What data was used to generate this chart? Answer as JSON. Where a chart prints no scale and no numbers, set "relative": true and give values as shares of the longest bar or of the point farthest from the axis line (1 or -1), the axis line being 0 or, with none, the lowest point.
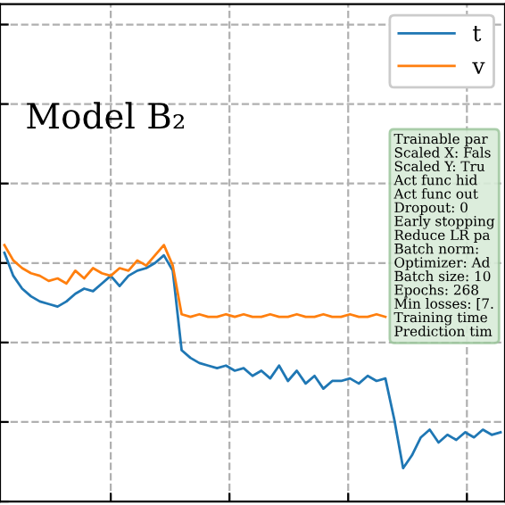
{
  "chart_data": {
    "type": "line",
    "relative": true,
    "grid": true,
    "legend": "top right",
    "tick_labels": false,
    "marker": "none",
    "line_style": "solid",
    "categories": [
      null,
      null,
      null,
      null,
      null,
      null,
      null,
      null,
      null,
      null,
      null,
      null,
      null,
      null,
      null,
      null,
      null,
      null,
      null,
      null,
      null,
      null,
      null,
      null,
      null,
      null,
      null,
      null,
      null,
      null,
      null,
      null,
      null,
      null,
      null,
      null,
      null,
      null,
      null,
      null,
      null,
      null,
      null,
      null,
      null,
      null,
      null,
      null,
      null,
      null,
      null,
      null,
      null,
      null,
      null,
      null,
      null
    ],
    "series": [
      {
        "name": "t",
        "color": "#1f77b4",
        "values": [
          0.97,
          0.88,
          0.83,
          0.8,
          0.78,
          0.77,
          0.76,
          0.78,
          0.81,
          0.83,
          0.82,
          0.85,
          0.88,
          0.84,
          0.88,
          0.9,
          0.91,
          0.93,
          0.96,
          0.9,
          0.59,
          0.56,
          0.54,
          0.53,
          0.52,
          0.53,
          0.51,
          0.52,
          0.49,
          0.51,
          0.48,
          0.53,
          0.47,
          0.51,
          0.46,
          0.49,
          0.44,
          0.47,
          0.47,
          0.48,
          0.46,
          0.49,
          0.47,
          0.48,
          0.32,
          0.13,
          0.18,
          0.25,
          0.28,
          0.23,
          0.26,
          0.24,
          0.27,
          0.25,
          0.28,
          0.26,
          0.27
        ]
      },
      {
        "name": "v",
        "color": "#ff7f0e",
        "values": [
          1.0,
          0.94,
          0.91,
          0.89,
          0.88,
          0.86,
          0.87,
          0.85,
          0.9,
          0.87,
          0.91,
          0.89,
          0.88,
          0.91,
          0.9,
          0.94,
          0.92,
          0.96,
          1.0,
          0.92,
          0.73,
          0.72,
          0.73,
          0.72,
          0.72,
          0.73,
          0.72,
          0.73,
          0.72,
          0.72,
          0.73,
          0.72,
          0.72,
          0.73,
          0.72,
          0.72,
          0.73,
          0.72,
          0.72,
          0.73,
          0.72,
          0.72,
          0.73,
          0.72,
          null,
          null,
          null,
          null,
          null,
          null,
          null,
          null,
          null,
          null,
          null,
          null,
          null
        ]
      }
    ],
    "annotations": [
      "Model B₂",
      "Trainable par\nScaled X: Fals\nScaled Y: Tru\nAct func hid\nAct func out\nDropout: 0\nEarly stopping\nReduce LR pa\nBatch norm:\nOptimizer: Ad\nBatch size: 10\nEpochs: 268\nMin losses: [7.\nTraining time\nPrediction tim"
    ]
  }
}
